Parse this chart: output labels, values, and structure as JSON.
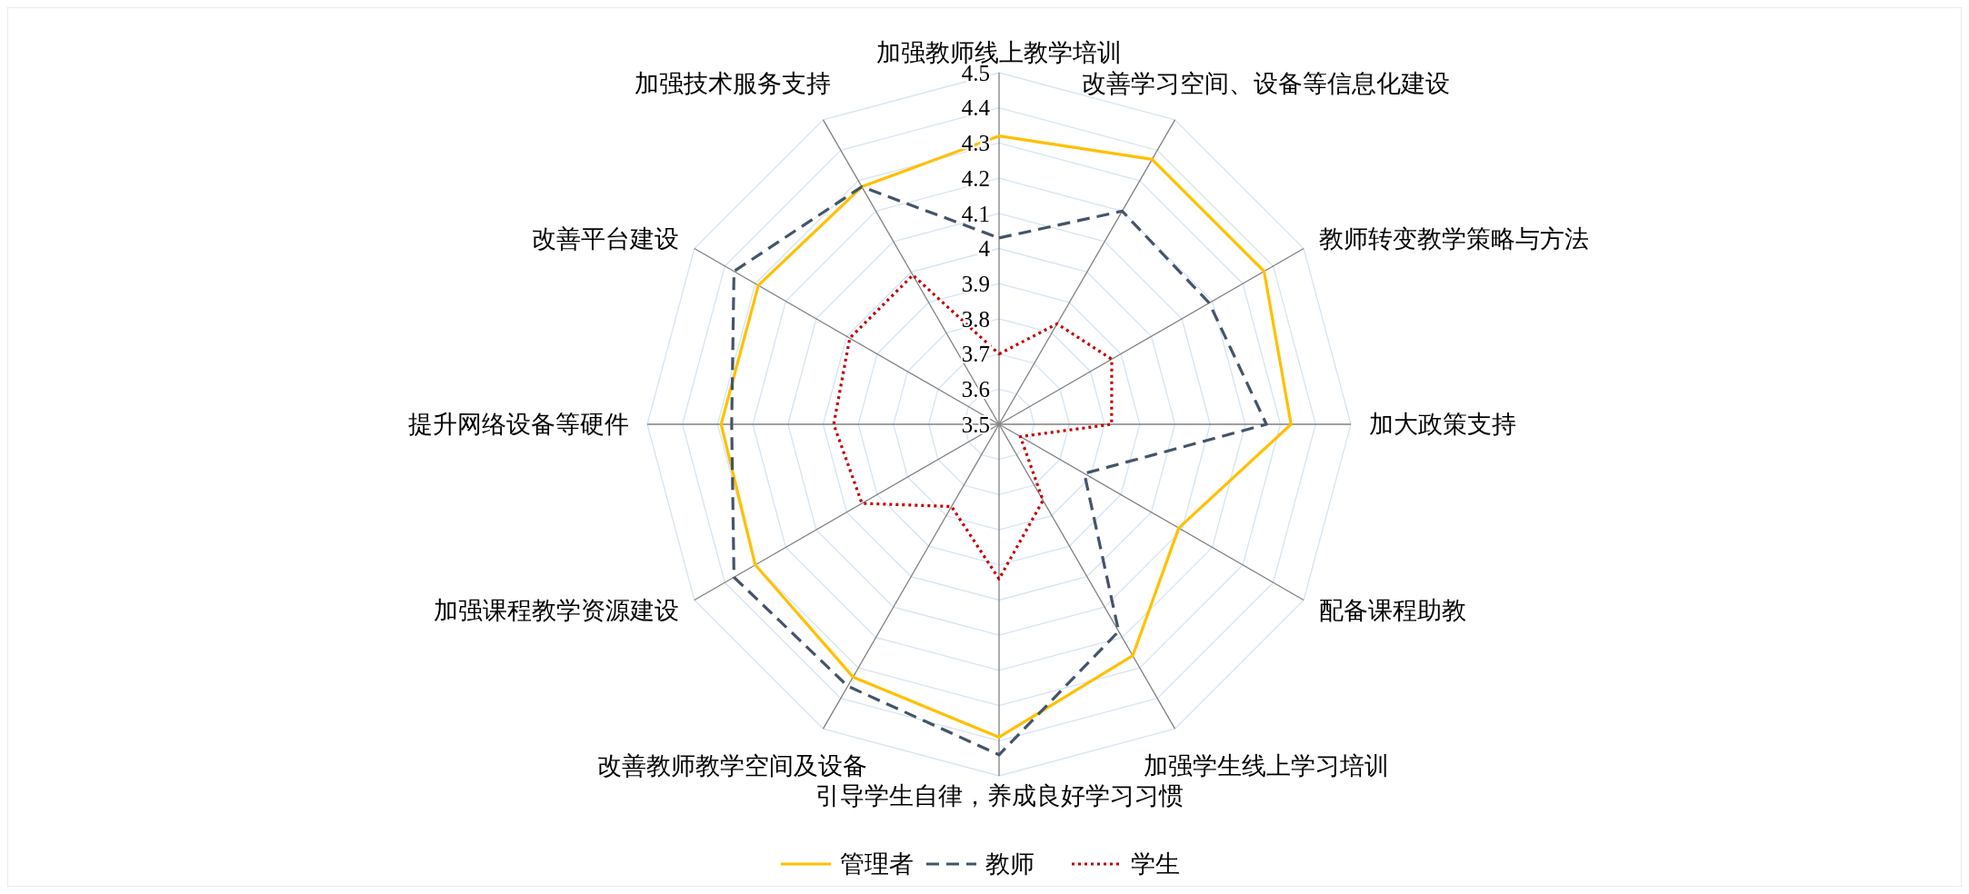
{
  "chart_data": {
    "type": "radar",
    "categories": [
      "加强教师线上教学培训",
      "改善学习空间、设备等信息化建设",
      "教师转变教学策略与方法",
      "加大政策支持",
      "配备课程助教",
      "加强学生线上学习培训",
      "引导学生自律，养成良好学习习惯",
      "改善教师教学空间及设备",
      "加强课程教学资源建设",
      "提升网络设备等硬件",
      "改善平台建设",
      "加强技术服务支持"
    ],
    "series": [
      {
        "name": "管理者",
        "color": "#ffc000",
        "line_style": "solid",
        "values": [
          4.32,
          4.37,
          4.37,
          4.33,
          4.09,
          4.26,
          4.39,
          4.33,
          4.3,
          4.29,
          4.29,
          4.28
        ]
      },
      {
        "name": "教师",
        "color": "#44546a",
        "line_style": "dashed",
        "values": [
          4.03,
          4.2,
          4.19,
          4.26,
          3.78,
          4.18,
          4.44,
          4.36,
          4.37,
          4.26,
          4.37,
          4.28
        ]
      },
      {
        "name": "学生",
        "color": "#c00000",
        "line_style": "dotted",
        "values": [
          3.7,
          3.83,
          3.87,
          3.82,
          3.57,
          3.75,
          3.94,
          3.77,
          3.95,
          3.97,
          3.99,
          3.99
        ]
      }
    ],
    "ylim": [
      3.5,
      4.5
    ],
    "yticks": [
      3.5,
      3.6,
      3.7,
      3.8,
      3.9,
      4,
      4.1,
      4.2,
      4.3,
      4.4,
      4.5
    ],
    "grid": true,
    "legend": "bottom"
  }
}
